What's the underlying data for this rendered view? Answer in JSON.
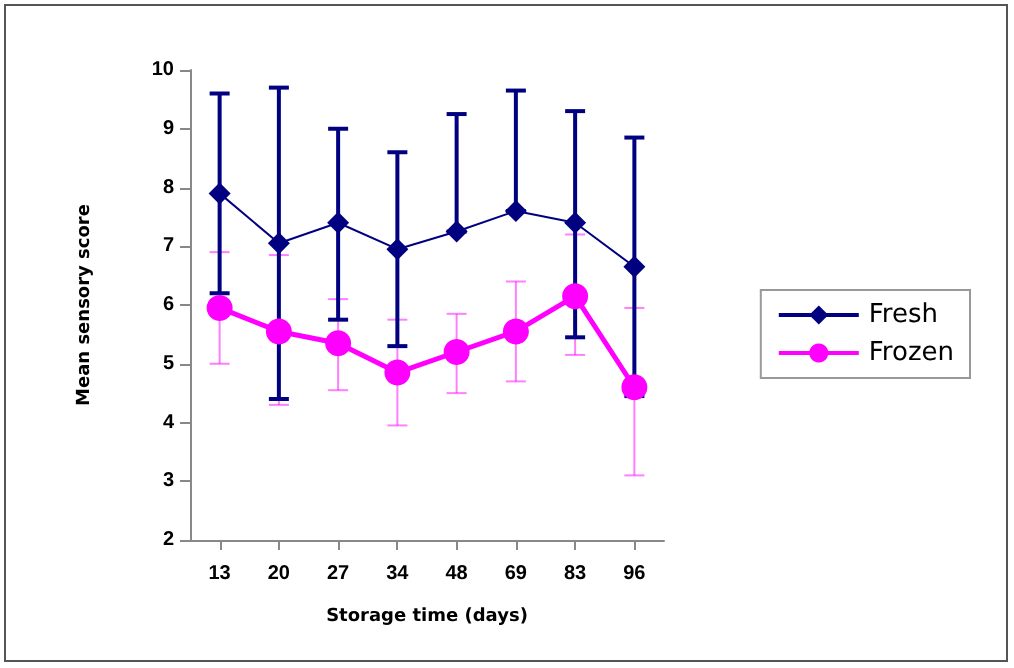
{
  "chart_data": {
    "type": "line",
    "xlabel": "Storage time (days)",
    "ylabel": "Mean sensory score",
    "categories": [
      "13",
      "20",
      "27",
      "34",
      "48",
      "69",
      "83",
      "96"
    ],
    "series": [
      {
        "name": "Fresh",
        "color": "#000080",
        "marker": "diamond",
        "values": [
          7.9,
          7.05,
          7.4,
          6.95,
          7.25,
          7.6,
          7.4,
          6.65
        ],
        "errors": [
          [
            6.2,
            9.6
          ],
          [
            4.4,
            9.7
          ],
          [
            5.75,
            9.0
          ],
          [
            5.3,
            8.6
          ],
          [
            7.25,
            9.25
          ],
          [
            7.6,
            9.65
          ],
          [
            5.45,
            9.3
          ],
          [
            4.45,
            8.85
          ]
        ]
      },
      {
        "name": "Frozen",
        "color": "#ff00ff",
        "marker": "circle",
        "values": [
          5.95,
          5.55,
          5.35,
          4.85,
          5.2,
          5.55,
          6.15,
          4.6
        ],
        "errors": [
          [
            5.0,
            6.9
          ],
          [
            4.3,
            6.85
          ],
          [
            4.55,
            6.1
          ],
          [
            3.95,
            5.75
          ],
          [
            4.5,
            5.85
          ],
          [
            4.7,
            6.4
          ],
          [
            5.15,
            7.2
          ],
          [
            3.1,
            5.95
          ]
        ]
      }
    ],
    "ylim": [
      2,
      10
    ],
    "yticks": [
      2,
      3,
      4,
      5,
      6,
      7,
      8,
      9,
      10
    ],
    "grid": false,
    "legend": "right",
    "line_style": "solid"
  }
}
